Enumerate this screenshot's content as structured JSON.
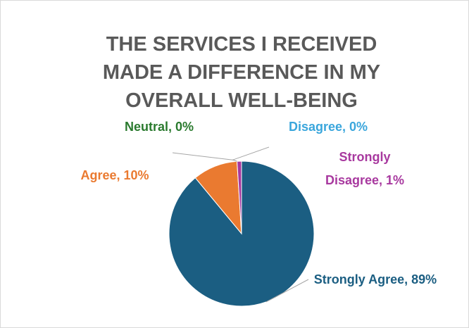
{
  "chart_data": {
    "type": "pie",
    "title": "THE SERVICES I RECEIVED MADE A DIFFERENCE IN MY OVERALL WELL-BEING",
    "categories": [
      "Strongly Agree",
      "Agree",
      "Neutral",
      "Disagree",
      "Strongly Disagree"
    ],
    "values": [
      89,
      10,
      0,
      0,
      1
    ],
    "value_labels": [
      "Strongly Agree, 89%",
      "Agree, 10%",
      "Neutral, 0%",
      "Disagree, 0%",
      "Strongly Disagree, 1%"
    ],
    "colors": [
      "#1b5e82",
      "#ea7a30",
      "#2a7a2e",
      "#3aa6dc",
      "#a8399f"
    ]
  }
}
